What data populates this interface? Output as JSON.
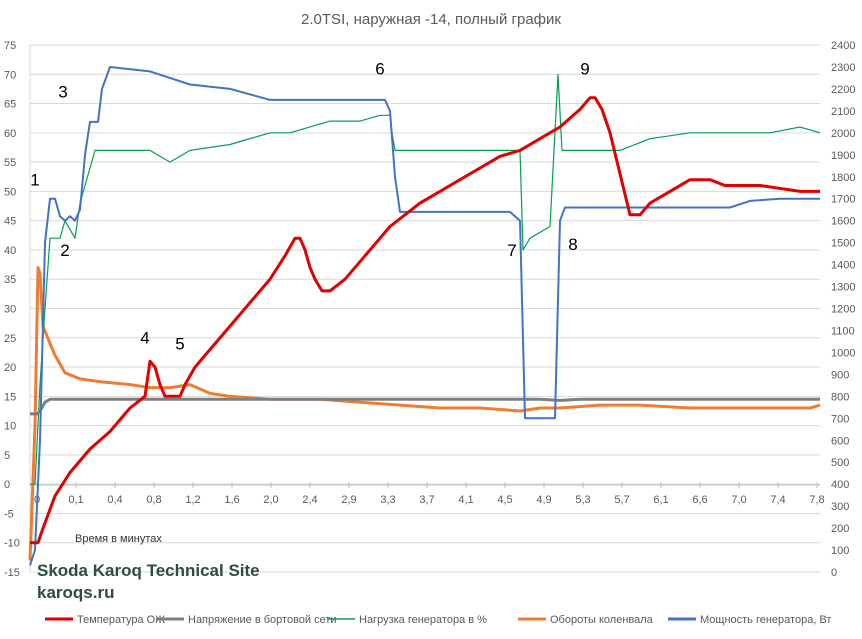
{
  "chart_data": {
    "type": "line",
    "title": "2.0TSI, наружная -14, полный график",
    "xlabel": "Время в минутах",
    "x_ticks": [
      "0",
      "0,1",
      "0,4",
      "0,8",
      "1,2",
      "1,6",
      "2,0",
      "2,4",
      "2,9",
      "3,3",
      "3,7",
      "4,1",
      "4,5",
      "4,9",
      "5,3",
      "5,7",
      "6,1",
      "6,6",
      "7,0",
      "7,4",
      "7,8"
    ],
    "xlim": [
      0,
      7.9
    ],
    "y_left_ticks": [
      "75",
      "70",
      "65",
      "60",
      "55",
      "50",
      "45",
      "40",
      "35",
      "30",
      "25",
      "20",
      "15",
      "10",
      "5",
      "0",
      "-5",
      "-10",
      "-15"
    ],
    "ylim_left": [
      -15,
      75
    ],
    "y_right_ticks": [
      "2400",
      "2300",
      "2200",
      "2100",
      "2000",
      "1900",
      "1800",
      "1700",
      "1600",
      "1500",
      "1400",
      "1300",
      "1200",
      "1100",
      "1000",
      "900",
      "800",
      "700",
      "600",
      "500",
      "400",
      "300",
      "200",
      "100",
      "0"
    ],
    "ylim_right": [
      0,
      2400
    ],
    "grid": true,
    "legend_position": "bottom",
    "series": [
      {
        "name": "Температура ОЖ",
        "color": "#e00000",
        "axis": "left",
        "points": [
          [
            0,
            -10
          ],
          [
            0.08,
            -10
          ],
          [
            0.12,
            -8
          ],
          [
            0.25,
            -2
          ],
          [
            0.4,
            2
          ],
          [
            0.6,
            6
          ],
          [
            0.8,
            9
          ],
          [
            1.0,
            13
          ],
          [
            1.15,
            15
          ],
          [
            1.2,
            21
          ],
          [
            1.25,
            20
          ],
          [
            1.3,
            17
          ],
          [
            1.35,
            15
          ],
          [
            1.5,
            15
          ],
          [
            1.55,
            17
          ],
          [
            1.65,
            20
          ],
          [
            1.8,
            23
          ],
          [
            2.0,
            27
          ],
          [
            2.2,
            31
          ],
          [
            2.4,
            35
          ],
          [
            2.55,
            39
          ],
          [
            2.65,
            42
          ],
          [
            2.7,
            42
          ],
          [
            2.75,
            40
          ],
          [
            2.8,
            37
          ],
          [
            2.85,
            35
          ],
          [
            2.92,
            33
          ],
          [
            3.0,
            33
          ],
          [
            3.15,
            35
          ],
          [
            3.3,
            38
          ],
          [
            3.45,
            41
          ],
          [
            3.6,
            44
          ],
          [
            3.75,
            46
          ],
          [
            3.9,
            48
          ],
          [
            4.1,
            50
          ],
          [
            4.3,
            52
          ],
          [
            4.5,
            54
          ],
          [
            4.7,
            56
          ],
          [
            4.9,
            57
          ],
          [
            5.1,
            59
          ],
          [
            5.3,
            61
          ],
          [
            5.5,
            64
          ],
          [
            5.6,
            66
          ],
          [
            5.65,
            66
          ],
          [
            5.72,
            64
          ],
          [
            5.8,
            60
          ],
          [
            5.9,
            53
          ],
          [
            6.0,
            46
          ],
          [
            6.1,
            46
          ],
          [
            6.2,
            48
          ],
          [
            6.4,
            50
          ],
          [
            6.6,
            52
          ],
          [
            6.8,
            52
          ],
          [
            6.95,
            51
          ],
          [
            7.3,
            51
          ],
          [
            7.7,
            50
          ],
          [
            7.9,
            50
          ]
        ]
      },
      {
        "name": "Напряжение в бортовой сети",
        "color": "#7f7f7f",
        "axis": "left",
        "points": [
          [
            0,
            12
          ],
          [
            0.07,
            12
          ],
          [
            0.1,
            12.5
          ],
          [
            0.15,
            14
          ],
          [
            0.2,
            14.5
          ],
          [
            0.6,
            14.5
          ],
          [
            1.2,
            14.5
          ],
          [
            2.0,
            14.5
          ],
          [
            2.4,
            14.5
          ],
          [
            3.0,
            14.5
          ],
          [
            3.5,
            14.5
          ],
          [
            4.0,
            14.5
          ],
          [
            4.5,
            14.5
          ],
          [
            4.9,
            14.5
          ],
          [
            5.1,
            14.5
          ],
          [
            5.3,
            14.3
          ],
          [
            5.5,
            14.5
          ],
          [
            6.0,
            14.5
          ],
          [
            7.0,
            14.5
          ],
          [
            7.9,
            14.5
          ]
        ]
      },
      {
        "name": "Нагрузка генератора в %",
        "color": "#00a050",
        "axis": "left",
        "points": [
          [
            0,
            0
          ],
          [
            0.05,
            0
          ],
          [
            0.1,
            17
          ],
          [
            0.15,
            30
          ],
          [
            0.2,
            42
          ],
          [
            0.3,
            42
          ],
          [
            0.35,
            45
          ],
          [
            0.45,
            42
          ],
          [
            0.5,
            48
          ],
          [
            0.55,
            51
          ],
          [
            0.65,
            57
          ],
          [
            0.8,
            57
          ],
          [
            1.0,
            57
          ],
          [
            1.2,
            57
          ],
          [
            1.4,
            55
          ],
          [
            1.6,
            57
          ],
          [
            2.0,
            58
          ],
          [
            2.4,
            60
          ],
          [
            2.6,
            60
          ],
          [
            3.0,
            62
          ],
          [
            3.3,
            62
          ],
          [
            3.5,
            63
          ],
          [
            3.6,
            63
          ],
          [
            3.62,
            60
          ],
          [
            3.65,
            57
          ],
          [
            3.8,
            57
          ],
          [
            4.2,
            57
          ],
          [
            4.5,
            57
          ],
          [
            4.7,
            57
          ],
          [
            4.8,
            57
          ],
          [
            4.9,
            57
          ],
          [
            4.93,
            40
          ],
          [
            5.0,
            42
          ],
          [
            5.2,
            44
          ],
          [
            5.28,
            70
          ],
          [
            5.32,
            57
          ],
          [
            5.5,
            57
          ],
          [
            5.7,
            57
          ],
          [
            5.9,
            57
          ],
          [
            6.2,
            59
          ],
          [
            6.6,
            60
          ],
          [
            7.0,
            60
          ],
          [
            7.4,
            60
          ],
          [
            7.7,
            61
          ],
          [
            7.9,
            60
          ]
        ]
      },
      {
        "name": "Обороты коленвала",
        "color": "#ed7d31",
        "axis": "left",
        "points": [
          [
            0,
            -13
          ],
          [
            0.05,
            10
          ],
          [
            0.08,
            37
          ],
          [
            0.1,
            36
          ],
          [
            0.13,
            27
          ],
          [
            0.2,
            24
          ],
          [
            0.25,
            22
          ],
          [
            0.35,
            19
          ],
          [
            0.5,
            18
          ],
          [
            0.7,
            17.5
          ],
          [
            1.0,
            17
          ],
          [
            1.2,
            16.5
          ],
          [
            1.4,
            16.5
          ],
          [
            1.6,
            17
          ],
          [
            1.8,
            15.5
          ],
          [
            2.0,
            15
          ],
          [
            2.4,
            14.5
          ],
          [
            2.9,
            14.5
          ],
          [
            3.3,
            14
          ],
          [
            3.7,
            13.5
          ],
          [
            4.1,
            13
          ],
          [
            4.5,
            13
          ],
          [
            4.9,
            12.5
          ],
          [
            5.1,
            13
          ],
          [
            5.3,
            13
          ],
          [
            5.7,
            13.5
          ],
          [
            6.1,
            13.5
          ],
          [
            6.6,
            13
          ],
          [
            7.0,
            13
          ],
          [
            7.4,
            13
          ],
          [
            7.8,
            13
          ],
          [
            7.9,
            13.5
          ]
        ]
      },
      {
        "name": "Мощноcть генератора, Вт",
        "color": "#4472c4",
        "axis": "right",
        "points": [
          [
            0,
            30
          ],
          [
            0.05,
            100
          ],
          [
            0.1,
            600
          ],
          [
            0.15,
            1500
          ],
          [
            0.2,
            1700
          ],
          [
            0.25,
            1700
          ],
          [
            0.3,
            1620
          ],
          [
            0.35,
            1600
          ],
          [
            0.4,
            1620
          ],
          [
            0.45,
            1600
          ],
          [
            0.5,
            1650
          ],
          [
            0.55,
            1900
          ],
          [
            0.6,
            2050
          ],
          [
            0.68,
            2050
          ],
          [
            0.72,
            2200
          ],
          [
            0.8,
            2300
          ],
          [
            1.2,
            2280
          ],
          [
            1.6,
            2220
          ],
          [
            2.0,
            2200
          ],
          [
            2.4,
            2150
          ],
          [
            2.9,
            2150
          ],
          [
            3.3,
            2150
          ],
          [
            3.55,
            2150
          ],
          [
            3.6,
            2100
          ],
          [
            3.65,
            1800
          ],
          [
            3.7,
            1640
          ],
          [
            4.0,
            1640
          ],
          [
            4.4,
            1640
          ],
          [
            4.8,
            1640
          ],
          [
            4.9,
            1600
          ],
          [
            4.95,
            700
          ],
          [
            5.25,
            700
          ],
          [
            5.3,
            1600
          ],
          [
            5.35,
            1660
          ],
          [
            5.7,
            1660
          ],
          [
            6.1,
            1660
          ],
          [
            6.6,
            1660
          ],
          [
            7.0,
            1660
          ],
          [
            7.2,
            1690
          ],
          [
            7.5,
            1700
          ],
          [
            7.9,
            1700
          ]
        ]
      }
    ],
    "annotations": [
      {
        "text": "1",
        "x": 0.05,
        "y": 51
      },
      {
        "text": "2",
        "x": 0.35,
        "y": 39
      },
      {
        "text": "3",
        "x": 0.33,
        "y": 66
      },
      {
        "text": "4",
        "x": 1.15,
        "y": 24
      },
      {
        "text": "5",
        "x": 1.5,
        "y": 23
      },
      {
        "text": "6",
        "x": 3.5,
        "y": 70
      },
      {
        "text": "7",
        "x": 4.82,
        "y": 39
      },
      {
        "text": "8",
        "x": 5.43,
        "y": 40
      },
      {
        "text": "9",
        "x": 5.55,
        "y": 70
      }
    ],
    "watermark": [
      "Skoda Karoq Technical Site",
      "karoqs.ru"
    ]
  }
}
